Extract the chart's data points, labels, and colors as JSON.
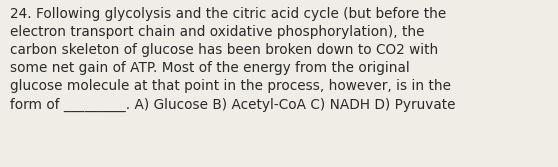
{
  "text": "24. Following glycolysis and the citric acid cycle (but before the\nelectron transport chain and oxidative phosphorylation), the\ncarbon skeleton of glucose has been broken down to CO2 with\nsome net gain of ATP. Most of the energy from the original\nglucose molecule at that point in the process, however, is in the\nform of _________. A) Glucose B) Acetyl-CoA C) NADH D) Pyruvate",
  "background_color": "#f0ede6",
  "text_color": "#2a2a2a",
  "font_size": 9.8,
  "fig_width": 5.58,
  "fig_height": 1.67,
  "dpi": 100
}
